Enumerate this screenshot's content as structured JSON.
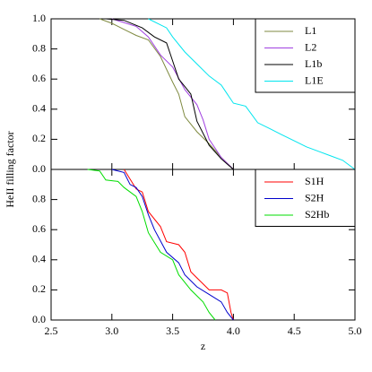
{
  "chart_data": [
    {
      "type": "line",
      "ylabel": "HeII filling factor",
      "xlim": [
        2.5,
        5.0
      ],
      "ylim": [
        0,
        1
      ],
      "yticks": [
        {
          "value": 0,
          "label": "0.0"
        },
        0.2,
        0.4,
        0.6,
        0.8,
        {
          "value": 1,
          "label": "1.0"
        }
      ],
      "legend": "upper right",
      "series": [
        {
          "name": "L1",
          "color": "#7f8a40",
          "x": [
            2.9,
            3.0,
            3.1,
            3.2,
            3.3,
            3.4,
            3.5,
            3.55,
            3.6,
            3.7,
            3.8,
            3.9,
            4.0
          ],
          "values": [
            1.0,
            0.97,
            0.93,
            0.89,
            0.86,
            0.75,
            0.58,
            0.5,
            0.35,
            0.25,
            0.17,
            0.08,
            0.0
          ]
        },
        {
          "name": "L2",
          "color": "#a040e0",
          "x": [
            3.0,
            3.2,
            3.3,
            3.4,
            3.5,
            3.6,
            3.7,
            3.75,
            3.8,
            3.9,
            4.0
          ],
          "values": [
            1.0,
            0.95,
            0.88,
            0.76,
            0.68,
            0.53,
            0.43,
            0.33,
            0.2,
            0.08,
            0.0
          ]
        },
        {
          "name": "L1b",
          "color": "#000000",
          "x": [
            2.95,
            3.1,
            3.25,
            3.35,
            3.45,
            3.5,
            3.55,
            3.6,
            3.65,
            3.7,
            3.8,
            3.9,
            4.0
          ],
          "values": [
            1.0,
            0.99,
            0.94,
            0.88,
            0.84,
            0.72,
            0.6,
            0.55,
            0.5,
            0.32,
            0.16,
            0.07,
            0.0
          ]
        },
        {
          "name": "L1E",
          "color": "#00e5ee",
          "x": [
            3.3,
            3.45,
            3.5,
            3.6,
            3.7,
            3.8,
            3.9,
            4.0,
            4.1,
            4.2,
            4.3,
            4.4,
            4.5,
            4.6,
            4.7,
            4.8,
            4.9,
            5.0
          ],
          "values": [
            1.0,
            0.94,
            0.88,
            0.78,
            0.7,
            0.62,
            0.56,
            0.44,
            0.42,
            0.31,
            0.27,
            0.23,
            0.19,
            0.15,
            0.12,
            0.09,
            0.06,
            0.0
          ]
        }
      ]
    },
    {
      "type": "line",
      "xlabel": "z",
      "xlim": [
        2.5,
        5.0
      ],
      "ylim": [
        0,
        1
      ],
      "xticks": [
        2.5,
        {
          "value": 3,
          "label": "3.0"
        },
        3.5,
        {
          "value": 4,
          "label": "4.0"
        },
        4.5,
        {
          "value": 5,
          "label": "5.0"
        }
      ],
      "yticks": [
        {
          "value": 0,
          "label": "0.0"
        },
        0.2,
        0.4,
        0.6,
        0.8
      ],
      "legend": "upper right",
      "series": [
        {
          "name": "S1H",
          "color": "#ff0000",
          "x": [
            3.1,
            3.2,
            3.25,
            3.3,
            3.4,
            3.45,
            3.55,
            3.6,
            3.65,
            3.7,
            3.8,
            3.9,
            3.95,
            3.98,
            4.0
          ],
          "values": [
            1.0,
            0.87,
            0.85,
            0.72,
            0.62,
            0.52,
            0.5,
            0.45,
            0.32,
            0.28,
            0.2,
            0.2,
            0.18,
            0.05,
            0.0
          ]
        },
        {
          "name": "S2H",
          "color": "#0000cc",
          "x": [
            3.0,
            3.1,
            3.15,
            3.2,
            3.25,
            3.3,
            3.35,
            3.45,
            3.55,
            3.6,
            3.7,
            3.8,
            3.9,
            3.95,
            4.0
          ],
          "values": [
            1.0,
            0.98,
            0.9,
            0.88,
            0.82,
            0.7,
            0.6,
            0.45,
            0.38,
            0.3,
            0.22,
            0.17,
            0.12,
            0.05,
            0.0
          ]
        },
        {
          "name": "S2Hb",
          "color": "#00dd00",
          "x": [
            2.8,
            2.9,
            2.95,
            3.05,
            3.1,
            3.2,
            3.25,
            3.3,
            3.4,
            3.5,
            3.55,
            3.65,
            3.75,
            3.8,
            3.85
          ],
          "values": [
            1.0,
            0.99,
            0.93,
            0.92,
            0.88,
            0.82,
            0.72,
            0.58,
            0.45,
            0.4,
            0.3,
            0.2,
            0.12,
            0.05,
            0.0
          ]
        }
      ]
    }
  ]
}
